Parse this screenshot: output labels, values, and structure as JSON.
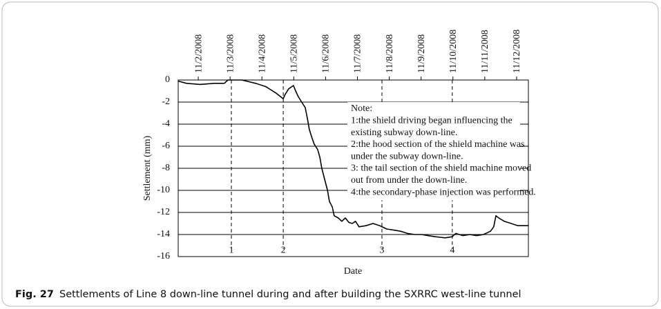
{
  "chart_data": {
    "type": "line",
    "caption_label": "Fig. 27",
    "caption": "Settlements of Line 8 down-line tunnel during and after building the SXRRC west-line tunnel",
    "xlabel": "Date",
    "ylabel": "Settlement (mm)",
    "xlim": [
      1.37,
      12.37
    ],
    "xticks": [
      {
        "value": 2,
        "label": "11/2/2008"
      },
      {
        "value": 3,
        "label": "11/3/2008"
      },
      {
        "value": 4,
        "label": "11/4/2008"
      },
      {
        "value": 5,
        "label": "11/5/2008"
      },
      {
        "value": 6,
        "label": "11/6/2008"
      },
      {
        "value": 7,
        "label": "11/7/2008"
      },
      {
        "value": 8,
        "label": "11/8/2008"
      },
      {
        "value": 9,
        "label": "11/9/2008"
      },
      {
        "value": 10,
        "label": "11/10/2008"
      },
      {
        "value": 11,
        "label": "11/11/2008"
      },
      {
        "value": 12,
        "label": "11/12/2008"
      }
    ],
    "ylim": [
      -16,
      0
    ],
    "yticks": [
      0,
      -2,
      -4,
      -6,
      -8,
      -10,
      -12,
      -14,
      -16
    ],
    "grid": true,
    "series": [
      {
        "color": "#000000",
        "x": [
          1.37,
          1.63,
          2.06,
          2.5,
          2.82,
          2.93,
          3.37,
          3.8,
          4.12,
          4.45,
          4.67,
          4.73,
          4.84,
          4.99,
          5.06,
          5.14,
          5.25,
          5.36,
          5.43,
          5.49,
          5.58,
          5.64,
          5.75,
          5.82,
          5.88,
          5.97,
          6.06,
          6.12,
          6.21,
          6.27,
          6.4,
          6.51,
          6.62,
          6.73,
          6.84,
          6.94,
          7.05,
          7.27,
          7.49,
          7.7,
          7.92,
          8.14,
          8.35,
          8.57,
          8.79,
          9.01,
          9.22,
          9.44,
          9.76,
          9.98,
          10.09,
          10.31,
          10.53,
          10.74,
          10.96,
          11.18,
          11.28,
          11.35,
          11.44,
          11.61,
          11.83,
          12.04,
          12.37
        ],
        "values": [
          -0.1,
          -0.3,
          -0.4,
          -0.3,
          -0.3,
          0,
          0,
          -0.3,
          -0.6,
          -1.2,
          -1.7,
          -1.3,
          -0.8,
          -0.5,
          -1.0,
          -1.5,
          -2.0,
          -2.5,
          -3.5,
          -4.5,
          -5.3,
          -5.8,
          -6.3,
          -7.0,
          -8.0,
          -9.0,
          -10.0,
          -11.0,
          -11.5,
          -12.3,
          -12.5,
          -12.8,
          -12.5,
          -12.9,
          -13.0,
          -12.8,
          -13.3,
          -13.2,
          -13.0,
          -13.2,
          -13.5,
          -13.6,
          -13.7,
          -13.9,
          -14.0,
          -14.0,
          -14.1,
          -14.2,
          -14.3,
          -14.2,
          -13.9,
          -14.1,
          -14.0,
          -14.1,
          -14.0,
          -13.7,
          -13.3,
          -12.3,
          -12.5,
          -12.8,
          -13.0,
          -13.2,
          -13.2
        ]
      }
    ],
    "events": [
      {
        "x": 3.04,
        "label": "1"
      },
      {
        "x": 4.67,
        "label": "2"
      },
      {
        "x": 7.77,
        "label": "3"
      },
      {
        "x": 9.98,
        "label": "4"
      }
    ],
    "note": [
      "Note:",
      "1:the shield driving began influencing the",
      "existing subway down-line.",
      "2:the hood section of the shield machine was",
      "under the subway down-line.",
      "3: the tail section of the shield machine moved",
      "out from under the down-line.",
      "4:the secondary-phase injection was performed."
    ]
  }
}
